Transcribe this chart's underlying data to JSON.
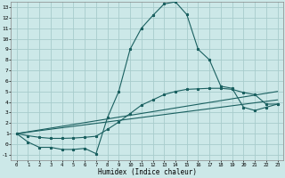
{
  "xlabel": "Humidex (Indice chaleur)",
  "bg_color": "#cce8e8",
  "grid_color": "#a8cccc",
  "line_color": "#1a6060",
  "x_min": -0.5,
  "x_max": 23.5,
  "y_min": -1.5,
  "y_max": 13.5,
  "x_ticks": [
    0,
    1,
    2,
    3,
    4,
    5,
    6,
    7,
    8,
    9,
    10,
    11,
    12,
    13,
    14,
    15,
    16,
    17,
    18,
    19,
    20,
    21,
    22,
    23
  ],
  "y_ticks": [
    -1,
    0,
    1,
    2,
    3,
    4,
    5,
    6,
    7,
    8,
    9,
    10,
    11,
    12,
    13
  ],
  "curve1_x": [
    0,
    1,
    2,
    3,
    4,
    5,
    6,
    7,
    8,
    9,
    10,
    11,
    12,
    13,
    14,
    15,
    16,
    17,
    18,
    19,
    20,
    21,
    22,
    23
  ],
  "curve1_y": [
    1.0,
    0.2,
    -0.3,
    -0.3,
    -0.5,
    -0.5,
    -0.4,
    -0.9,
    2.5,
    5.0,
    9.0,
    11.0,
    12.2,
    13.3,
    13.5,
    12.3,
    9.0,
    8.0,
    5.5,
    5.3,
    3.5,
    3.2,
    3.5,
    3.8
  ],
  "curve2_x": [
    0,
    1,
    2,
    3,
    4,
    5,
    6,
    7,
    8,
    9,
    10,
    11,
    12,
    13,
    14,
    15,
    16,
    17,
    18,
    19,
    20,
    21,
    22,
    23
  ],
  "curve2_y": [
    1.0,
    0.8,
    0.65,
    0.55,
    0.55,
    0.58,
    0.65,
    0.75,
    1.4,
    2.1,
    2.9,
    3.7,
    4.2,
    4.7,
    5.0,
    5.2,
    5.25,
    5.3,
    5.3,
    5.2,
    4.9,
    4.7,
    3.8,
    3.8
  ],
  "curve3_x": [
    0,
    23
  ],
  "curve3_y": [
    1.0,
    4.2
  ],
  "curve4_x": [
    0,
    23
  ],
  "curve4_y": [
    1.0,
    5.0
  ]
}
